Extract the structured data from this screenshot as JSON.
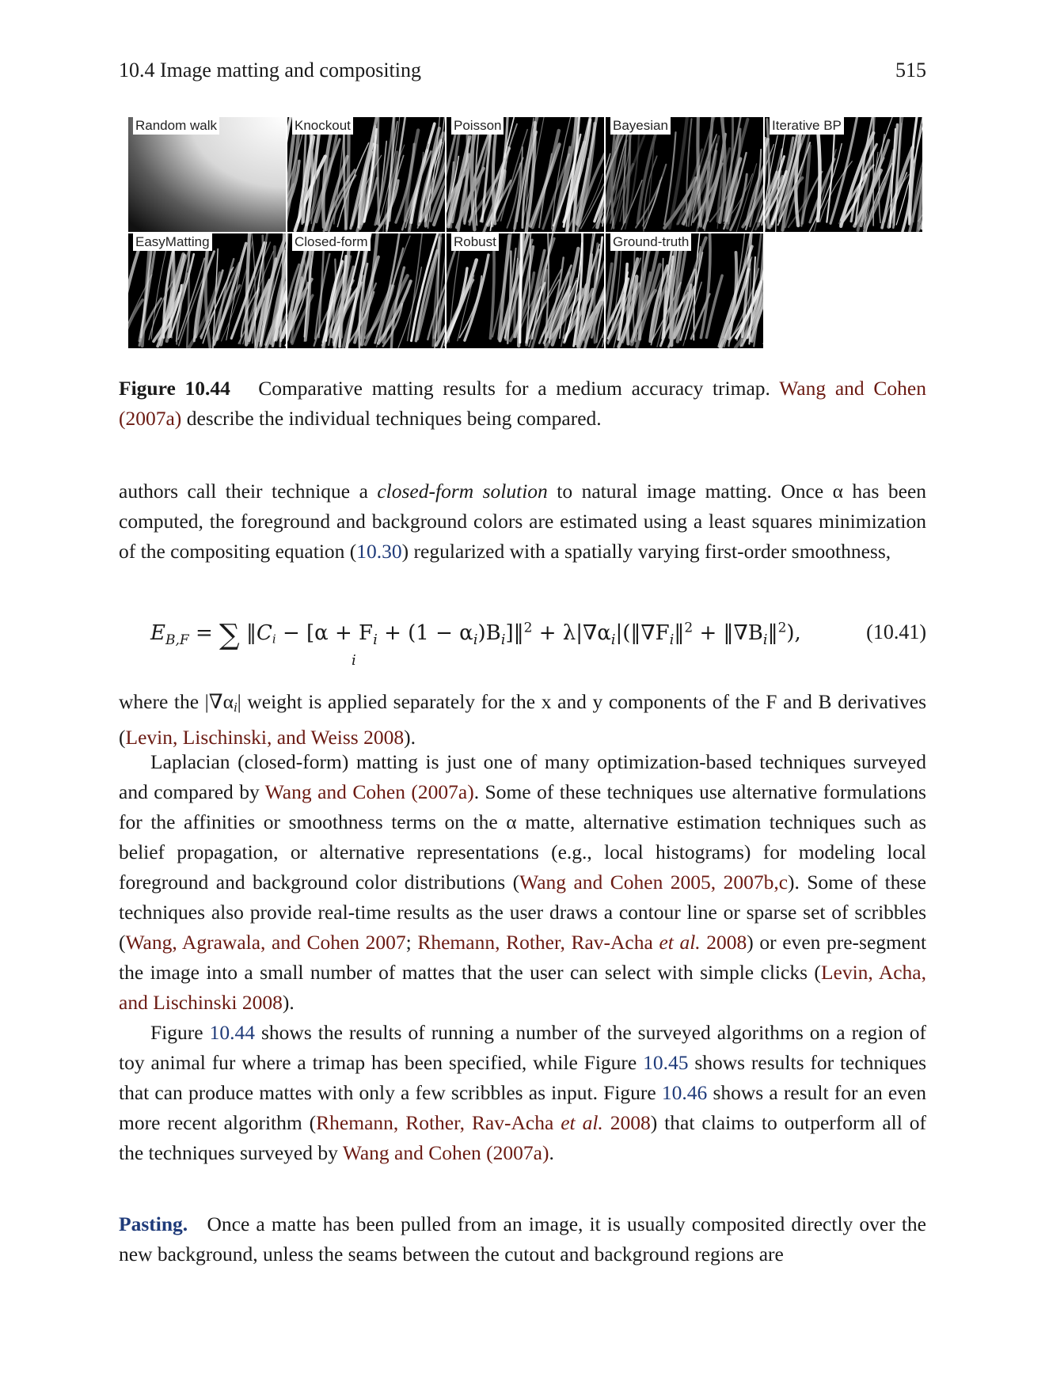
{
  "header": {
    "section_title": "10.4 Image matting and compositing",
    "page_number": "515"
  },
  "figure": {
    "panels": [
      {
        "label": "Random walk",
        "kind": "gradient"
      },
      {
        "label": "Knockout",
        "kind": "fur"
      },
      {
        "label": "Poisson",
        "kind": "fur"
      },
      {
        "label": "Bayesian",
        "kind": "fur-dark"
      },
      {
        "label": "Iterative BP",
        "kind": "fur"
      },
      {
        "label": "EasyMatting",
        "kind": "fur"
      },
      {
        "label": "Closed-form",
        "kind": "fur"
      },
      {
        "label": "Robust",
        "kind": "fur"
      },
      {
        "label": "Ground-truth",
        "kind": "fur"
      }
    ],
    "caption_label": "Figure 10.44",
    "caption_text": "Comparative matting results for a medium accuracy trimap.",
    "caption_cite": "Wang and Cohen",
    "caption_cite_year": "(2007a)",
    "caption_tail": "describe the individual techniques being compared."
  },
  "para1": {
    "t1": "authors call their technique a",
    "emph": "closed-form solution",
    "t2": "to natural image matting. Once α has been computed, the foreground and background colors are estimated using a least squares minimization of the compositing equation (",
    "ref": "10.30",
    "t3": ") regularized with a spatially varying first-order smoothness,"
  },
  "equation": {
    "lhs": "E",
    "lhs_sub": "B,F",
    "rhs": "‖C",
    "sub_index": "i",
    "number": "(10.41)"
  },
  "para2": {
    "t1": "where the |∇α",
    "t2": "| weight is applied separately for the x and y components of the F and B derivatives (",
    "cite": "Levin, Lischinski, and Weiss 2008",
    "t3": ")."
  },
  "para3": {
    "t1": "Laplacian (closed-form) matting is just one of many optimization-based techniques surveyed and compared by",
    "c1": "Wang and Cohen (2007a)",
    "t2": ". Some of these techniques use alternative formulations for the affinities or smoothness terms on the α matte, alternative estimation techniques such as belief propagation, or alternative representations (e.g., local histograms) for modeling local foreground and background color distributions (",
    "c2": "Wang and Cohen 2005, 2007b,c",
    "t3": "). Some of these techniques also provide real-time results as the user draws a contour line or sparse set of scribbles (",
    "c3": "Wang, Agrawala, and Cohen 2007",
    "t4": ";",
    "c4a": "Rhemann, Rother, Rav-Acha",
    "c4b": "et al.",
    "c4c": "2008",
    "t5": ") or even pre-segment the image into a small number of mattes that the user can select with simple clicks (",
    "c5": "Levin, Acha, and Lischinski 2008",
    "t6": ")."
  },
  "para4": {
    "t1": "Figure",
    "r1": "10.44",
    "t2": "shows the results of running a number of the surveyed algorithms on a region of toy animal fur where a trimap has been specified, while Figure",
    "r2": "10.45",
    "t3": "shows results for techniques that can produce mattes with only a few scribbles as input. Figure",
    "r3": "10.46",
    "t4": "shows a result for an even more recent algorithm (",
    "c1a": "Rhemann, Rother, Rav-Acha",
    "c1b": "et al.",
    "c1c": "2008",
    "t5": ") that claims to outperform all of the techniques surveyed by",
    "c2": "Wang and Cohen (2007a)",
    "t6": "."
  },
  "pasting": {
    "head": "Pasting.",
    "text": "Once a matte has been pulled from an image, it is usually composited directly over the new background, unless the seams between the cutout and background regions are"
  }
}
